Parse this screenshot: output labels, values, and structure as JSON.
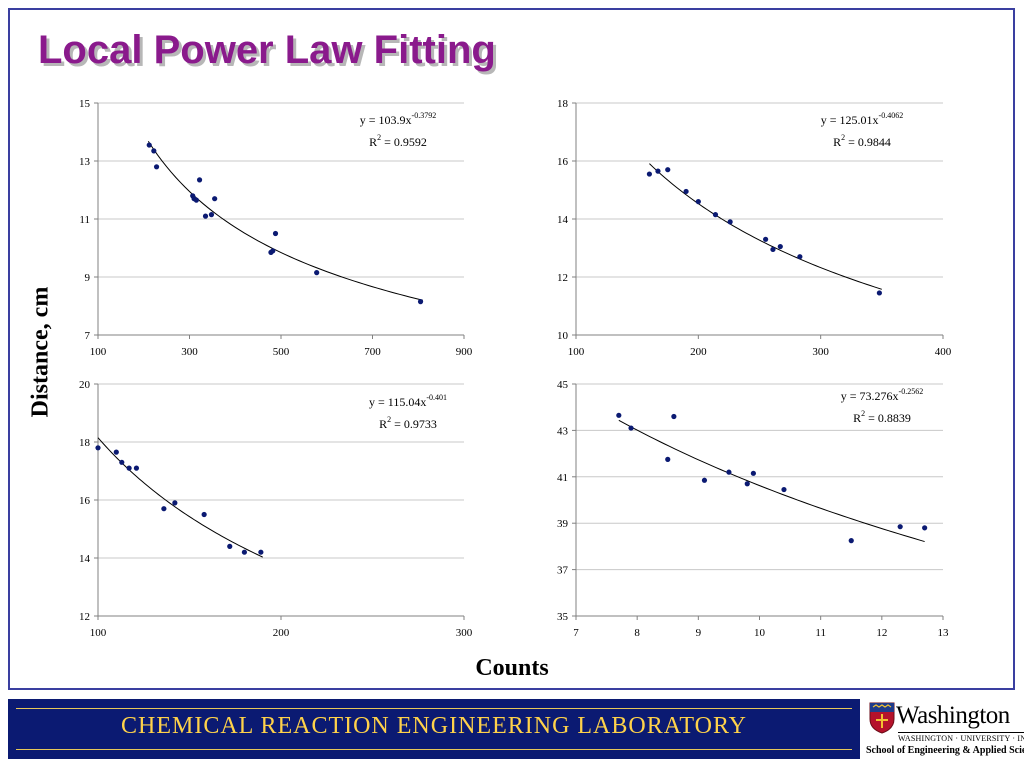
{
  "slide": {
    "title": "Local Power Law Fitting",
    "y_axis_label": "Distance, cm",
    "x_axis_label": "Counts"
  },
  "footer": {
    "lab_name": "CHEMICAL  REACTION  ENGINEERING  LABORATORY",
    "logo_name": "Washington",
    "logo_university": "WASHINGTON · UNIVERSITY · IN · ST · LOUIS",
    "logo_school": "School of Engineering & Applied Science"
  },
  "colors": {
    "title": "#8a1a8c",
    "points": "#0b1a72",
    "footer_bg": "#0b1a72",
    "footer_text": "#ffd24a",
    "frame": "#3a3fa0"
  },
  "chart_data": [
    {
      "type": "scatter",
      "position": "top-left",
      "xlim": [
        100,
        900
      ],
      "ylim": [
        7,
        15
      ],
      "xticks": [
        100,
        300,
        500,
        700,
        900
      ],
      "yticks": [
        7,
        9,
        11,
        13,
        15
      ],
      "grid": "horizontal",
      "fit": {
        "type": "power",
        "a": 103.9,
        "b": -0.3792,
        "x_range": [
          210,
          810
        ]
      },
      "equation": {
        "text": "y = 103.9x",
        "exponent": "-0.3792",
        "r2_text": "R",
        "r2_value": " = 0.9592"
      },
      "x": [
        212,
        222,
        228,
        307,
        310,
        315,
        322,
        335,
        348,
        355,
        478,
        482,
        488,
        578,
        805
      ],
      "y": [
        13.55,
        13.35,
        12.8,
        11.8,
        11.7,
        11.65,
        12.35,
        11.1,
        11.15,
        11.7,
        9.85,
        9.9,
        10.5,
        9.15,
        8.15
      ]
    },
    {
      "type": "scatter",
      "position": "top-right",
      "xlim": [
        100,
        400
      ],
      "ylim": [
        10,
        18
      ],
      "xticks": [
        100,
        200,
        300,
        400
      ],
      "yticks": [
        10,
        12,
        14,
        16,
        18
      ],
      "grid": "horizontal",
      "fit": {
        "type": "power",
        "a": 125.01,
        "b": -0.4062,
        "x_range": [
          160,
          350
        ]
      },
      "equation": {
        "text": "y = 125.01x",
        "exponent": "-0.4062",
        "r2_text": "R",
        "r2_value": " = 0.9844"
      },
      "x": [
        160,
        167,
        175,
        190,
        200,
        214,
        226,
        255,
        261,
        267,
        283,
        348
      ],
      "y": [
        15.55,
        15.65,
        15.7,
        14.95,
        14.6,
        14.15,
        13.9,
        13.3,
        12.95,
        13.05,
        12.7,
        11.45
      ]
    },
    {
      "type": "scatter",
      "position": "bottom-left",
      "xlim": [
        100,
        300
      ],
      "ylim": [
        12,
        20
      ],
      "xticks": [
        100,
        200,
        300
      ],
      "yticks": [
        12,
        14,
        16,
        18,
        20
      ],
      "grid": "horizontal",
      "fit": {
        "type": "power",
        "a": 115.04,
        "b": -0.401,
        "x_range": [
          100,
          190
        ]
      },
      "equation": {
        "text": "y = 115.04x",
        "exponent": "-0.401",
        "r2_text": "R",
        "r2_value": " = 0.9733"
      },
      "x": [
        100,
        110,
        113,
        117,
        121,
        136,
        142,
        158,
        172,
        180,
        189
      ],
      "y": [
        17.8,
        17.65,
        17.3,
        17.1,
        17.1,
        15.7,
        15.9,
        15.5,
        14.4,
        14.2,
        14.2
      ]
    },
    {
      "type": "scatter",
      "position": "bottom-right",
      "xlim": [
        7,
        13
      ],
      "ylim": [
        35,
        45
      ],
      "xticks": [
        7,
        8,
        9,
        10,
        11,
        12,
        13
      ],
      "yticks": [
        35,
        37,
        39,
        41,
        43,
        45
      ],
      "grid": "horizontal",
      "fit": {
        "type": "power",
        "a": 73.276,
        "b": -0.2562,
        "x_range": [
          7.7,
          12.7
        ]
      },
      "equation": {
        "text": "y = 73.276x",
        "exponent": "-0.2562",
        "r2_text": "R",
        "r2_value": " = 0.8839"
      },
      "x": [
        7.7,
        7.9,
        8.5,
        8.6,
        9.1,
        9.5,
        9.8,
        9.9,
        10.4,
        11.5,
        12.3,
        12.7
      ],
      "y": [
        43.65,
        43.1,
        41.75,
        43.6,
        40.85,
        41.2,
        40.7,
        41.15,
        40.45,
        38.25,
        38.85,
        38.8
      ]
    }
  ]
}
